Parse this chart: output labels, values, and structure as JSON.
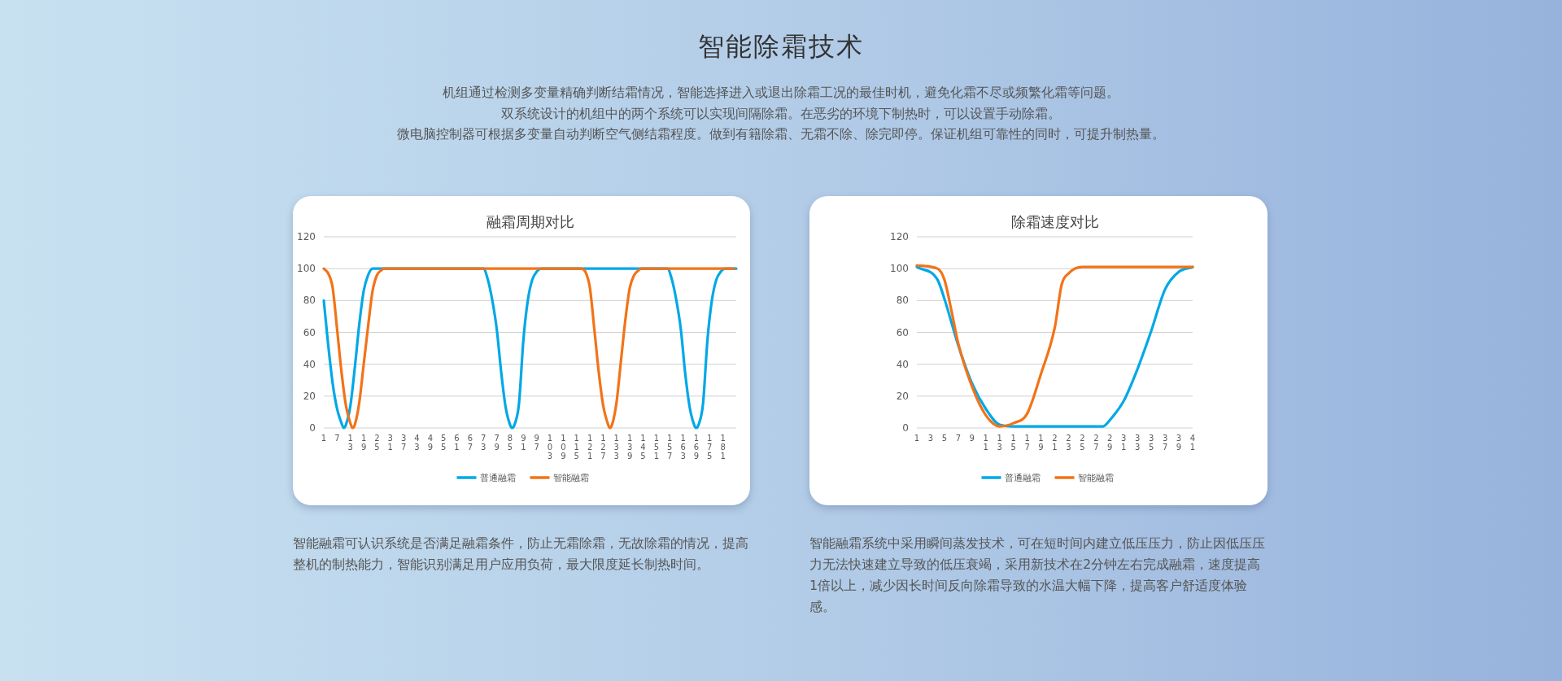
{
  "chart_data": [
    {
      "type": "other",
      "title": "智能除霜技术",
      "annotations": [
        "机组通过检测多变量精确判断结霜情况，智能选择进入或退出除霜工况的最佳时机，避免化霜不尽或频繁化霜等问题。",
        "双系统设计的机组中的两个系统可以实现间隔除霜。在恶劣的环境下制热时，可以设置手动除霜。",
        "微电脑控制器可根据多变量自动判断空气侧结霜程度。做到有籍除霜、无霜不除、除完即停。保证机组可靠性的同时，可提升制热量。"
      ]
    },
    {
      "type": "line",
      "title": "融霜周期对比",
      "xlim": [
        1,
        187
      ],
      "xticks": [
        1,
        7,
        13,
        19,
        25,
        31,
        37,
        43,
        49,
        55,
        61,
        67,
        73,
        79,
        85,
        91,
        97,
        103,
        109,
        115,
        121,
        127,
        133,
        139,
        145,
        151,
        157,
        163,
        169,
        175,
        181
      ],
      "ylim": [
        0,
        120
      ],
      "yticks": [
        0,
        20,
        40,
        60,
        80,
        100,
        120
      ],
      "grid": "y",
      "legend": "bottom",
      "series": [
        {
          "name": "普通融霜",
          "color": "#00a8e6",
          "x": [
            1,
            3,
            5,
            7,
            9,
            10,
            11,
            13,
            15,
            17,
            19,
            21,
            23,
            73,
            75,
            77,
            79,
            81,
            83,
            85,
            86,
            87,
            89,
            91,
            93,
            95,
            97,
            99,
            156,
            158,
            160,
            162,
            164,
            166,
            168,
            169,
            170,
            172,
            174,
            176,
            178,
            180,
            182,
            187
          ],
          "values": [
            80,
            52,
            28,
            12,
            3,
            0,
            2,
            14,
            38,
            65,
            86,
            96,
            100,
            100,
            93,
            80,
            62,
            35,
            13,
            2,
            0,
            2,
            15,
            55,
            80,
            93,
            98,
            100,
            100,
            93,
            80,
            62,
            34,
            13,
            2,
            0,
            2,
            15,
            55,
            80,
            93,
            98,
            100,
            100
          ]
        },
        {
          "name": "智能融霜",
          "color": "#f27318",
          "x": [
            1,
            3,
            5,
            7,
            9,
            11,
            13,
            14,
            15,
            17,
            19,
            21,
            23,
            25,
            27,
            28,
            117,
            119,
            121,
            123,
            125,
            127,
            129,
            130,
            131,
            133,
            135,
            137,
            139,
            141,
            143,
            144,
            186
          ],
          "values": [
            100,
            97,
            88,
            62,
            35,
            14,
            3,
            0,
            2,
            16,
            40,
            64,
            86,
            96,
            99,
            100,
            100,
            98,
            88,
            62,
            35,
            14,
            3,
            0,
            2,
            16,
            42,
            68,
            88,
            96,
            99,
            100,
            100
          ]
        }
      ],
      "annotations": [
        "智能融霜可认识系统是否满足融霜条件，防止无霜除霜，无故除霜的情况，提高整机的制热能力，智能识别满足用户应用负荷，最大限度延长制热时间。"
      ]
    },
    {
      "type": "line",
      "title": "除霜速度对比",
      "xlim": [
        1,
        41
      ],
      "xticks": [
        1,
        3,
        5,
        7,
        9,
        11,
        13,
        15,
        17,
        19,
        21,
        23,
        25,
        27,
        29,
        31,
        33,
        35,
        37,
        39,
        41
      ],
      "ylim": [
        0,
        120
      ],
      "yticks": [
        0,
        20,
        40,
        60,
        80,
        100,
        120
      ],
      "grid": "y",
      "legend": "bottom",
      "series": [
        {
          "name": "普通融霜",
          "color": "#00a8e6",
          "x": [
            1,
            4,
            5,
            7,
            9,
            11,
            13,
            15,
            20,
            25,
            28,
            29,
            31,
            33,
            35,
            37,
            39,
            41
          ],
          "values": [
            101,
            93,
            81,
            52,
            28,
            12,
            2,
            1,
            1,
            1,
            1,
            5,
            17,
            37,
            61,
            87,
            98,
            101
          ]
        },
        {
          "name": "智能融霜",
          "color": "#f27318",
          "x": [
            1,
            4,
            5,
            6,
            7,
            9,
            11,
            13,
            15,
            17,
            19,
            21,
            22,
            23,
            25,
            30,
            35,
            41
          ],
          "values": [
            102,
            100,
            93,
            74,
            53,
            26,
            8,
            1,
            3,
            9,
            34,
            63,
            90,
            97,
            101,
            101,
            101,
            101
          ]
        }
      ],
      "annotations": [
        "智能融霜系统中采用瞬间蒸发技术，可在短时间内建立低压压力，防止因低压压力无法快速建立导致的低压衰竭，采用新技术在2分钟左右完成融霜，速度提高1倍以上，减少因长时间反向除霜导致的水温大幅下降，提高客户舒适度体验感。"
      ]
    }
  ]
}
